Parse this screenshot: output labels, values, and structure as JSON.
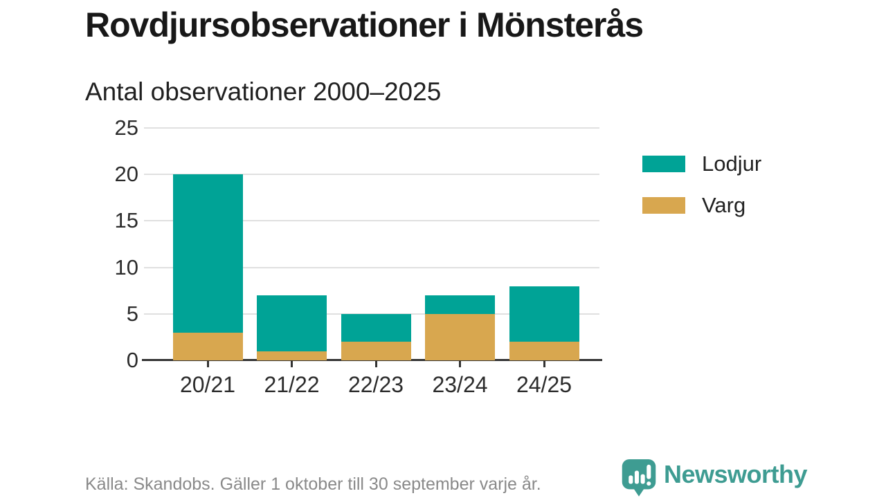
{
  "header": {
    "title": "Rovdjursobservationer i Mönsterås",
    "subtitle": "Antal observationer 2000–2025"
  },
  "chart_data": {
    "type": "bar",
    "stacked": true,
    "title": "Rovdjursobservationer i Mönsterås",
    "subtitle": "Antal observationer 2000–2025",
    "categories": [
      "20/21",
      "21/22",
      "22/23",
      "23/24",
      "24/25"
    ],
    "series": [
      {
        "name": "Lodjur",
        "color": "#00a396",
        "values": [
          17,
          6,
          3,
          2,
          6
        ]
      },
      {
        "name": "Varg",
        "color": "#d8a74f",
        "values": [
          3,
          1,
          2,
          5,
          2
        ]
      }
    ],
    "stack_bottom_series": "Varg",
    "totals": [
      20,
      7,
      5,
      7,
      8
    ],
    "ylim": [
      0,
      25
    ],
    "yticks": [
      0,
      5,
      10,
      15,
      20,
      25
    ],
    "grid": "horizontal",
    "legend_position": "right"
  },
  "footer": {
    "source": "Källa: Skandobs. Gäller 1 oktober till 30 september varje år.",
    "logo_text": "Newsworthy"
  },
  "colors": {
    "lodjur": "#00a396",
    "varg": "#d8a74f",
    "axis": "#333333",
    "gridline": "#e0e0e0",
    "tick_text": "#2b2b2b",
    "footer_text": "#898989",
    "logo_teal": "#3e9c92"
  }
}
